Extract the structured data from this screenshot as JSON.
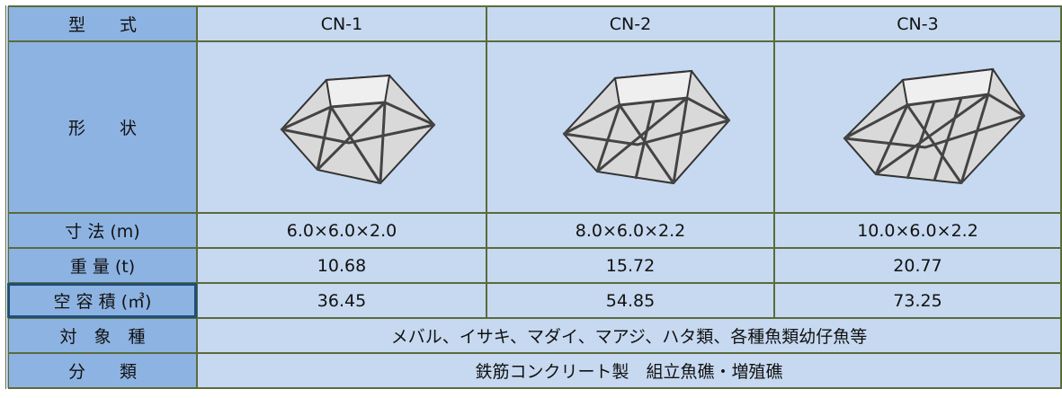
{
  "table": {
    "header": [
      "型　　式",
      "CN-1",
      "CN-2",
      "CN-3"
    ],
    "shape_label": "形　　状",
    "rows": [
      [
        "寸 法 (m)",
        "6.0×6.0×2.0",
        "8.0×6.0×2.2",
        "10.0×6.0×2.2"
      ],
      [
        "重 量 (t)",
        "10.68",
        "15.72",
        "20.77"
      ],
      [
        "空 容 積 (㎥)",
        "36.45",
        "54.85",
        "73.25"
      ]
    ],
    "species_label": "対　象　種",
    "species": "メバル、イサキ、マダイ、マアジ、ハタ類、各種魚類幼仔魚等",
    "class_label": "分　　類",
    "class": "鉄筋コンクリート製　組立魚礁・増殖礁"
  }
}
